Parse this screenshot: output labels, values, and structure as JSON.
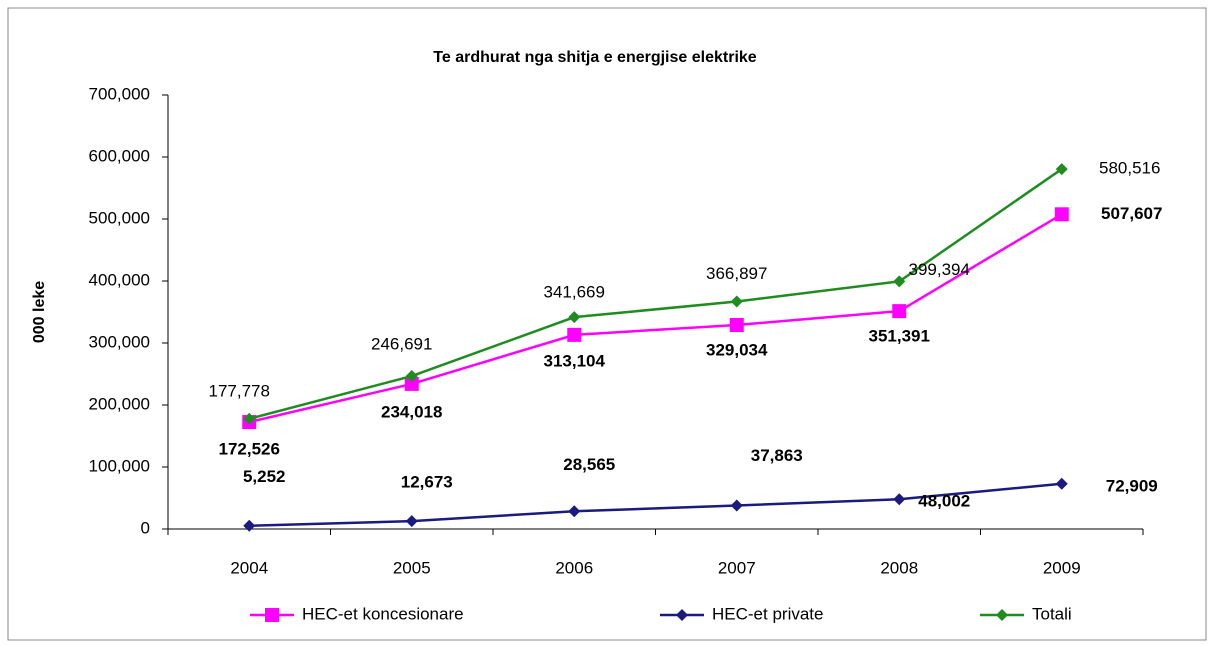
{
  "chart_data": {
    "type": "line",
    "title": "Te ardhurat nga shitja e energjise elektrike",
    "y_label": "000 leke",
    "categories": [
      "2004",
      "2005",
      "2006",
      "2007",
      "2008",
      "2009"
    ],
    "ylim": [
      0,
      700000
    ],
    "yticks": [
      0,
      {
        "value": 100000,
        "label": "100,000"
      },
      {
        "value": 200000,
        "label": "200,000"
      },
      {
        "value": 300000,
        "label": "300,000"
      },
      {
        "value": 400000,
        "label": "400,000"
      },
      {
        "value": 500000,
        "label": "500,000"
      },
      {
        "value": 600000,
        "label": "600,000"
      },
      {
        "value": 700000,
        "label": "700,000"
      }
    ],
    "legend": "bottom",
    "series": [
      {
        "name": "HEC-et koncesionare",
        "color": "#ff00ff",
        "marker": "square",
        "values": [
          172526,
          234018,
          313104,
          329034,
          351391,
          507607
        ],
        "value_labels": [
          "172,526",
          "234,018",
          "313,104",
          "329,034",
          "351,391",
          "507,607"
        ]
      },
      {
        "name": "HEC-et private",
        "color": "#1a1a80",
        "marker": "diamond",
        "values": [
          5252,
          12673,
          28565,
          37863,
          48002,
          72909
        ],
        "value_labels": [
          "5,252",
          "12,673",
          "28,565",
          "37,863",
          "48,002",
          "72,909"
        ]
      },
      {
        "name": "Totali",
        "color": "#1e8c1e",
        "marker": "diamond",
        "values": [
          177778,
          246691,
          341669,
          366897,
          399394,
          580516
        ],
        "value_labels": [
          "177,778",
          "246,691",
          "341,669",
          "366,897",
          "399,394",
          "580,516"
        ]
      }
    ]
  }
}
